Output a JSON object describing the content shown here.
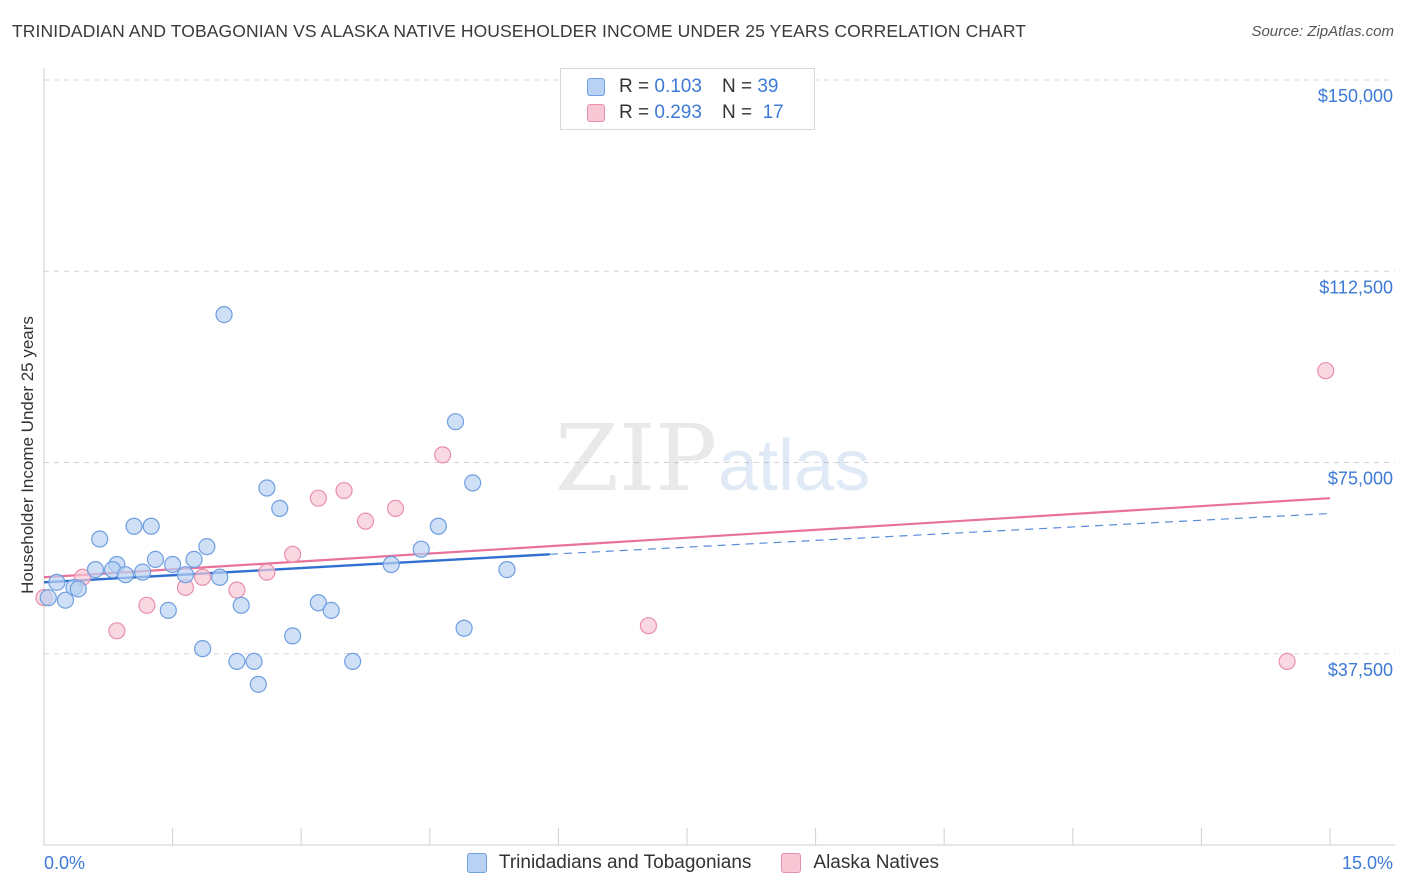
{
  "header": {
    "title": "TRINIDADIAN AND TOBAGONIAN VS ALASKA NATIVE HOUSEHOLDER INCOME UNDER 25 YEARS CORRELATION CHART",
    "source": "Source: ZipAtlas.com"
  },
  "watermark": {
    "zip": "ZIP",
    "atlas": "atlas"
  },
  "legend_top": {
    "rows": [
      {
        "r_label": "R =",
        "r_value": "0.103",
        "n_label": "N =",
        "n_value": "39"
      },
      {
        "r_label": "R =",
        "r_value": "0.293",
        "n_label": "N =",
        "n_value": "17"
      }
    ]
  },
  "legend_bottom": {
    "items": [
      {
        "label": "Trinidadians and Tobagonians"
      },
      {
        "label": "Alaska Natives"
      }
    ]
  },
  "colors": {
    "blue_fill": "#b9d1f2",
    "blue_stroke": "#6f9fe0",
    "blue_line": "#2f6fd1",
    "pink_fill": "#f8c7d6",
    "pink_stroke": "#e98fac",
    "pink_line": "#e8729a",
    "accent_text": "#3d7ad6",
    "grid": "#d4d4d4"
  },
  "chart_data": {
    "type": "scatter",
    "title": "TRINIDADIAN AND TOBAGONIAN VS ALASKA NATIVE HOUSEHOLDER INCOME UNDER 25 YEARS CORRELATION CHART",
    "xlabel": "",
    "ylabel": "Householder Income Under 25 years",
    "xlim": [
      0,
      15
    ],
    "ylim": [
      0,
      150000
    ],
    "x_tick_labels": [
      "0.0%",
      "15.0%"
    ],
    "y_ticks": [
      {
        "value": 150000,
        "label": "$150,000"
      },
      {
        "value": 112500,
        "label": "$112,500"
      },
      {
        "value": 75000,
        "label": "$75,000"
      },
      {
        "value": 37500,
        "label": "$37,500"
      }
    ],
    "series": [
      {
        "name": "Trinidadians and Tobagonians",
        "r": 0.103,
        "n": 39,
        "points": [
          [
            0.05,
            48500
          ],
          [
            0.15,
            51500
          ],
          [
            0.25,
            48000
          ],
          [
            0.35,
            50500
          ],
          [
            0.4,
            50200
          ],
          [
            0.65,
            60000
          ],
          [
            0.6,
            54000
          ],
          [
            0.85,
            55000
          ],
          [
            0.8,
            54000
          ],
          [
            0.95,
            53000
          ],
          [
            1.05,
            62500
          ],
          [
            1.25,
            62500
          ],
          [
            1.15,
            53500
          ],
          [
            1.3,
            56000
          ],
          [
            1.45,
            46000
          ],
          [
            1.5,
            55000
          ],
          [
            1.65,
            53000
          ],
          [
            1.75,
            56000
          ],
          [
            1.85,
            38500
          ],
          [
            1.9,
            58500
          ],
          [
            2.05,
            52500
          ],
          [
            2.1,
            104000
          ],
          [
            2.25,
            36000
          ],
          [
            2.3,
            47000
          ],
          [
            2.45,
            36000
          ],
          [
            2.5,
            31500
          ],
          [
            2.6,
            70000
          ],
          [
            2.75,
            66000
          ],
          [
            2.9,
            41000
          ],
          [
            3.2,
            47500
          ],
          [
            3.35,
            46000
          ],
          [
            3.6,
            36000
          ],
          [
            4.05,
            55000
          ],
          [
            4.4,
            58000
          ],
          [
            4.6,
            62500
          ],
          [
            4.8,
            83000
          ],
          [
            4.9,
            42500
          ],
          [
            5.0,
            71000
          ],
          [
            5.4,
            54000
          ]
        ],
        "trend": {
          "x_start": 0,
          "y_start": 51500,
          "x_end": 5.9,
          "y_end": 57000,
          "dashed_to_x": 15,
          "dashed_to_y": 65000
        }
      },
      {
        "name": "Alaska Natives",
        "r": 0.293,
        "n": 17,
        "points": [
          [
            0.0,
            48500
          ],
          [
            0.45,
            52500
          ],
          [
            0.85,
            42000
          ],
          [
            1.2,
            47000
          ],
          [
            1.65,
            50500
          ],
          [
            1.85,
            52500
          ],
          [
            2.25,
            50000
          ],
          [
            2.6,
            53500
          ],
          [
            2.9,
            57000
          ],
          [
            3.2,
            68000
          ],
          [
            3.5,
            69500
          ],
          [
            3.75,
            63500
          ],
          [
            4.1,
            66000
          ],
          [
            4.65,
            76500
          ],
          [
            7.05,
            43000
          ],
          [
            14.5,
            36000
          ],
          [
            14.95,
            93000
          ]
        ],
        "trend": {
          "x_start": 0,
          "y_start": 52500,
          "x_end": 15,
          "y_end": 68000
        }
      }
    ]
  }
}
